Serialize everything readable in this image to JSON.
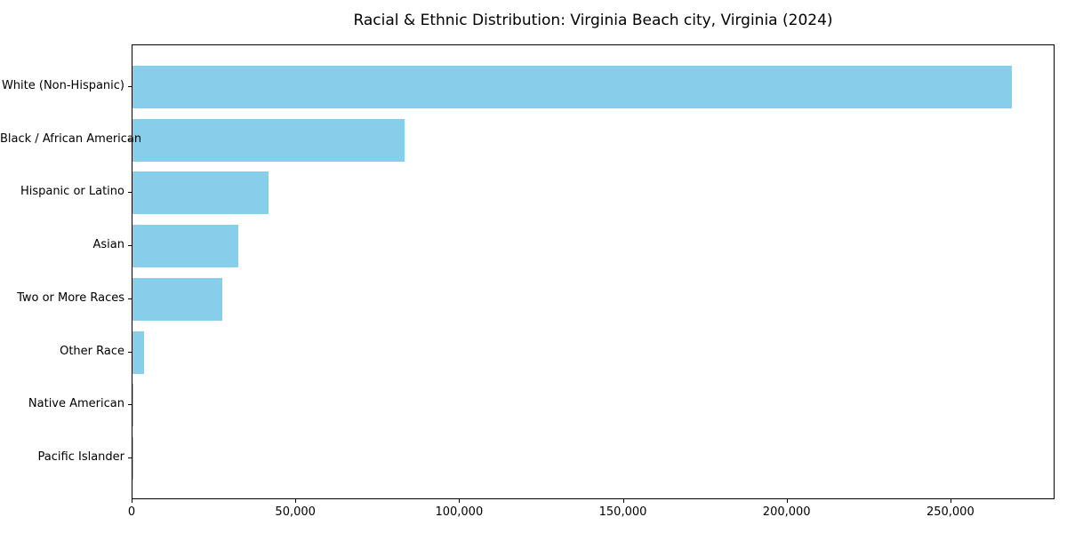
{
  "page": {
    "title": "Racial & Ethnic Distribution: Virginia Beach city, Virginia (2024)"
  },
  "chart_data": {
    "type": "bar",
    "orientation": "horizontal",
    "title": "Racial & Ethnic Distribution: Virginia Beach city, Virginia (2024)",
    "categories": [
      "White (Non-Hispanic)",
      "Black / African American",
      "Hispanic or Latino",
      "Asian",
      "Two or More Races",
      "Other Race",
      "Native American",
      "Pacific Islander"
    ],
    "values": [
      268400,
      83100,
      41600,
      32400,
      27400,
      3400,
      400,
      200
    ],
    "xlabel": "",
    "ylabel": "",
    "xlim": [
      0,
      281800
    ],
    "xticks": {
      "values": [
        0,
        50000,
        100000,
        150000,
        200000,
        250000
      ],
      "labels": [
        "0",
        "50,000",
        "100,000",
        "150,000",
        "200,000",
        "250,000"
      ]
    },
    "bar_color": "#87ceeb",
    "axis_color": "#000000",
    "background_color": "#ffffff",
    "grid": false,
    "legend": "none"
  }
}
